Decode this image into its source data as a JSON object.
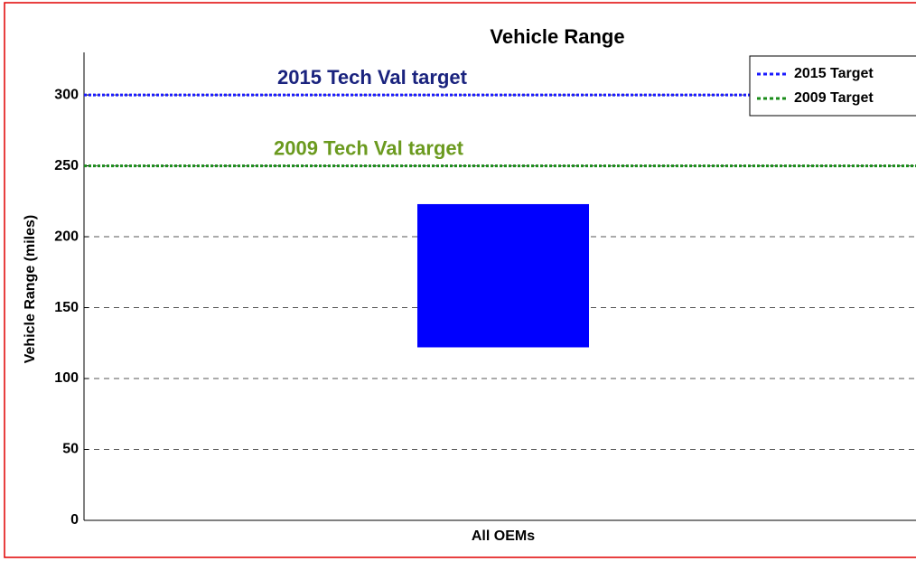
{
  "chart_data": {
    "type": "floating_bar",
    "title": "Vehicle Range",
    "ylabel": "Vehicle Range (miles)",
    "categories": [
      "All OEMs"
    ],
    "low": [
      122
    ],
    "high": [
      223
    ],
    "color": "#0000ff",
    "ylim": [
      0,
      330
    ],
    "yticks": [
      0,
      50,
      100,
      150,
      200,
      250,
      300
    ],
    "grid": true,
    "reference_lines": [
      {
        "name": "2015 Target",
        "value": 300,
        "color": "#1a1aff",
        "label": "2015 Tech Val target",
        "label_color": "#1a237e"
      },
      {
        "name": "2009 Target",
        "value": 250,
        "color": "#1a8c1a",
        "label": "2009 Tech Val target",
        "label_color": "#6b9a1f"
      }
    ],
    "legend": "upper right"
  }
}
